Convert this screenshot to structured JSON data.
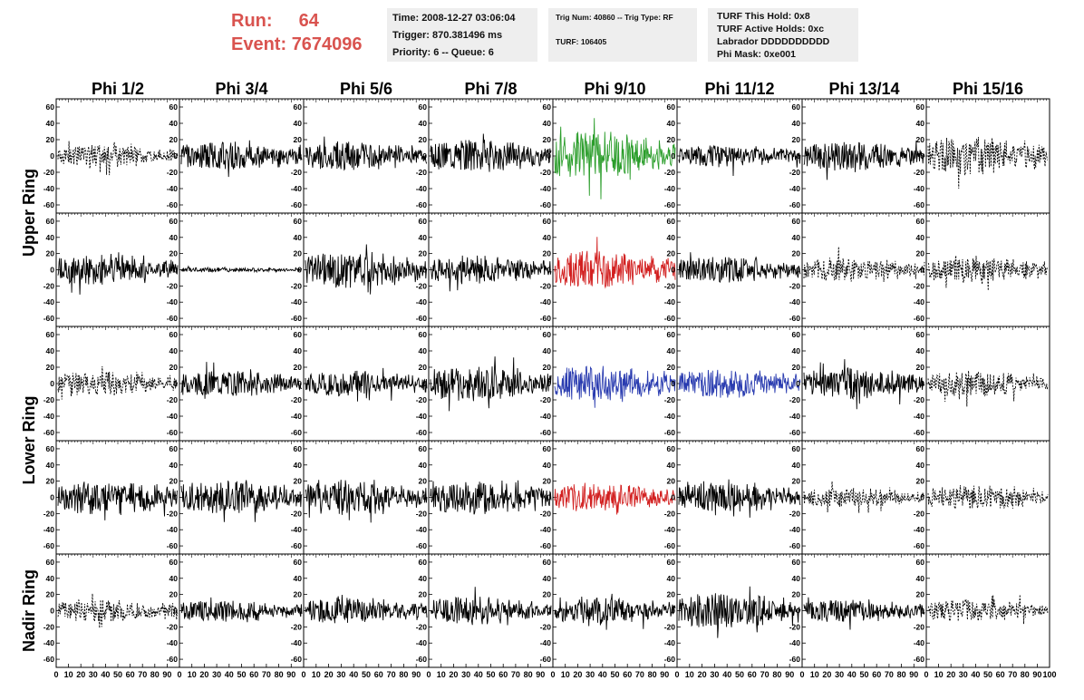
{
  "header": {
    "run_label": "Run:",
    "run_value": "64",
    "event_label": "Event:",
    "event_value": "7674096",
    "time_box": {
      "time": "Time: 2008-12-27 03:06:04",
      "trigger": "Trigger: 870.381496 ms",
      "priority": "Priority: 6 -- Queue: 6"
    },
    "trig_box": {
      "trig_num": "Trig Num: 40860 -- Trig Type: RF",
      "turf": "TURF: 106405"
    },
    "turf_box": {
      "this_hold": "TURF This Hold: 0x8",
      "active_holds": "TURF Active Holds: 0xc",
      "labrador": "Labrador DDDDDDDDDD",
      "phi_mask": "Phi Mask: 0xe001"
    }
  },
  "chart_data": {
    "type": "line",
    "columns": [
      "Phi 1/2",
      "Phi 3/4",
      "Phi 5/6",
      "Phi 7/8",
      "Phi 9/10",
      "Phi 11/12",
      "Phi 13/14",
      "Phi 15/16"
    ],
    "ring_labels": [
      "Upper Ring",
      "Lower Ring",
      "Nadir Ring"
    ],
    "ylim": [
      -70,
      70
    ],
    "y_ticks": [
      60,
      40,
      20,
      0,
      -20,
      -40,
      -60
    ],
    "xlim": [
      0,
      100
    ],
    "x_ticks": [
      0,
      10,
      20,
      30,
      40,
      50,
      60,
      70,
      80,
      90,
      100
    ],
    "colors": {
      "default": "#000000",
      "green": "#2a9d2a",
      "red": "#d22020",
      "blue": "#2a3cb0"
    },
    "panels": [
      [
        {
          "amp": 14,
          "dash": true,
          "color": "default",
          "seed": 11
        },
        {
          "amp": 18,
          "dash": false,
          "color": "default",
          "seed": 12
        },
        {
          "amp": 18,
          "dash": false,
          "color": "default",
          "seed": 13
        },
        {
          "amp": 20,
          "dash": false,
          "color": "default",
          "seed": 14
        },
        {
          "amp": 30,
          "dash": false,
          "color": "green",
          "seed": 15
        },
        {
          "amp": 14,
          "dash": false,
          "color": "default",
          "seed": 16
        },
        {
          "amp": 18,
          "dash": false,
          "color": "default",
          "seed": 17
        },
        {
          "amp": 24,
          "dash": true,
          "color": "default",
          "seed": 18
        }
      ],
      [
        {
          "amp": 20,
          "dash": false,
          "color": "default",
          "seed": 21
        },
        {
          "amp": 3,
          "dash": false,
          "color": "default",
          "seed": 22
        },
        {
          "amp": 24,
          "dash": false,
          "color": "default",
          "seed": 23
        },
        {
          "amp": 18,
          "dash": false,
          "color": "default",
          "seed": 24
        },
        {
          "amp": 24,
          "dash": false,
          "color": "red",
          "seed": 25
        },
        {
          "amp": 16,
          "dash": false,
          "color": "default",
          "seed": 26
        },
        {
          "amp": 16,
          "dash": true,
          "color": "default",
          "seed": 27
        },
        {
          "amp": 16,
          "dash": true,
          "color": "default",
          "seed": 28
        }
      ],
      [
        {
          "amp": 16,
          "dash": true,
          "color": "default",
          "seed": 31
        },
        {
          "amp": 16,
          "dash": false,
          "color": "default",
          "seed": 32
        },
        {
          "amp": 16,
          "dash": false,
          "color": "default",
          "seed": 33
        },
        {
          "amp": 22,
          "dash": false,
          "color": "default",
          "seed": 34
        },
        {
          "amp": 22,
          "dash": false,
          "color": "blue",
          "seed": 35
        },
        {
          "amp": 18,
          "dash": false,
          "color": "blue",
          "seed": 36
        },
        {
          "amp": 20,
          "dash": false,
          "color": "default",
          "seed": 37
        },
        {
          "amp": 16,
          "dash": true,
          "color": "default",
          "seed": 38
        }
      ],
      [
        {
          "amp": 22,
          "dash": false,
          "color": "default",
          "seed": 41
        },
        {
          "amp": 22,
          "dash": false,
          "color": "default",
          "seed": 42
        },
        {
          "amp": 22,
          "dash": false,
          "color": "default",
          "seed": 43
        },
        {
          "amp": 22,
          "dash": false,
          "color": "default",
          "seed": 44
        },
        {
          "amp": 18,
          "dash": false,
          "color": "red",
          "seed": 45
        },
        {
          "amp": 18,
          "dash": false,
          "color": "default",
          "seed": 46
        },
        {
          "amp": 12,
          "dash": true,
          "color": "default",
          "seed": 47
        },
        {
          "amp": 16,
          "dash": true,
          "color": "default",
          "seed": 48
        }
      ],
      [
        {
          "amp": 14,
          "dash": true,
          "color": "default",
          "seed": 51
        },
        {
          "amp": 14,
          "dash": false,
          "color": "default",
          "seed": 52
        },
        {
          "amp": 16,
          "dash": false,
          "color": "default",
          "seed": 53
        },
        {
          "amp": 18,
          "dash": false,
          "color": "default",
          "seed": 54
        },
        {
          "amp": 16,
          "dash": false,
          "color": "default",
          "seed": 55
        },
        {
          "amp": 22,
          "dash": false,
          "color": "default",
          "seed": 56
        },
        {
          "amp": 14,
          "dash": false,
          "color": "default",
          "seed": 57
        },
        {
          "amp": 14,
          "dash": true,
          "color": "default",
          "seed": 58
        }
      ]
    ]
  }
}
